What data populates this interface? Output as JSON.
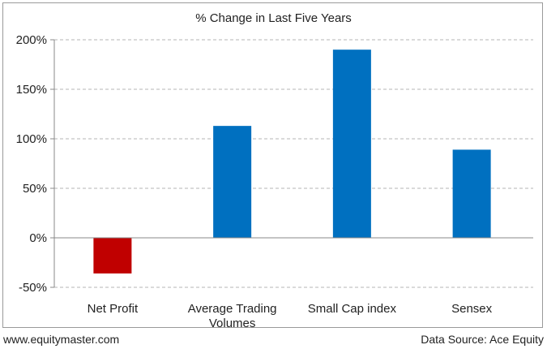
{
  "chart_data": {
    "type": "bar",
    "title": "% Change in Last Five Years",
    "categories": [
      "Net Profit",
      "Average Trading Volumes",
      "Small Cap index",
      "Sensex"
    ],
    "category_lines": [
      [
        "Net Profit"
      ],
      [
        "Average Trading",
        "Volumes"
      ],
      [
        "Small Cap index"
      ],
      [
        "Sensex"
      ]
    ],
    "values": [
      -36,
      113,
      190,
      89
    ],
    "ylim": [
      -50,
      200
    ],
    "yticks": [
      -50,
      0,
      50,
      100,
      150,
      200
    ],
    "ytick_labels": [
      "-50%",
      "0%",
      "50%",
      "100%",
      "150%",
      "200%"
    ],
    "grid": true,
    "colors": {
      "positive": "#0070c0",
      "negative": "#c00000"
    }
  },
  "footer": {
    "left": "www.equitymaster.com",
    "right": "Data Source: Ace Equity"
  }
}
